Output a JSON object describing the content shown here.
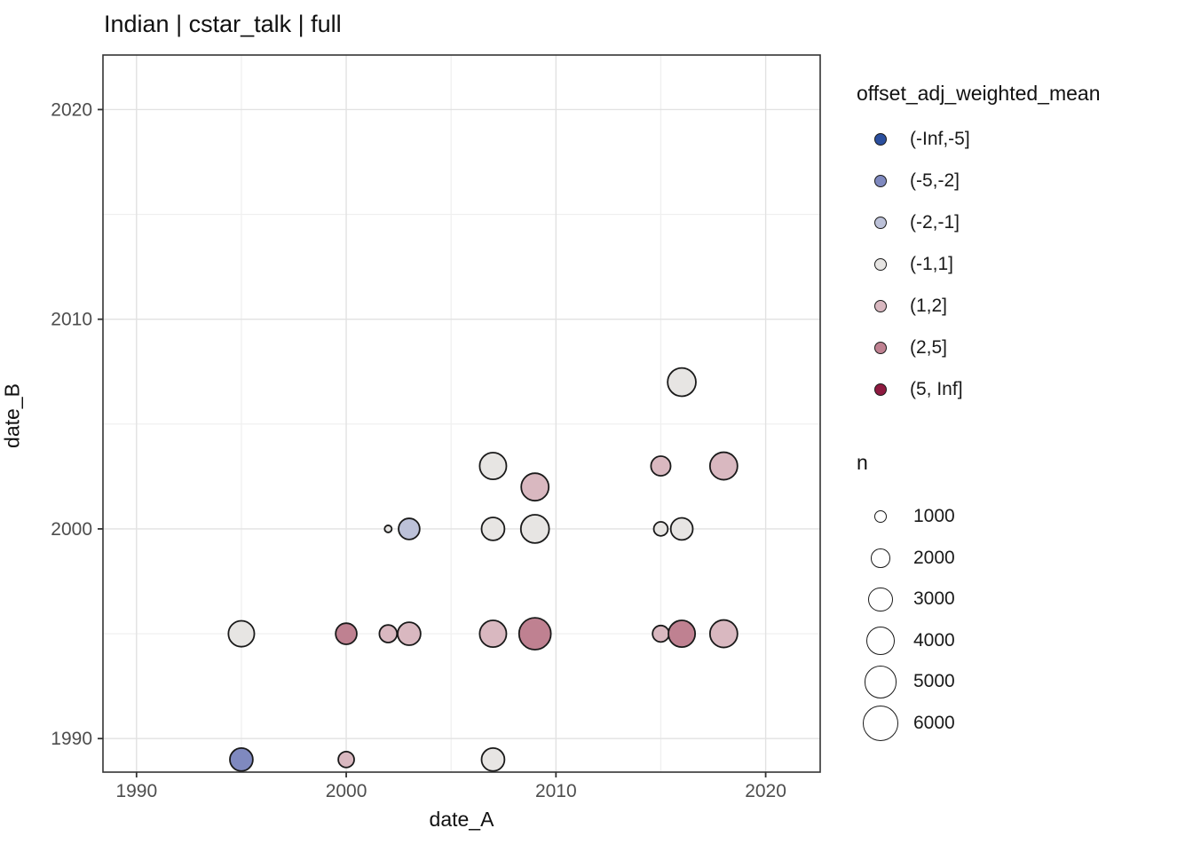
{
  "title": "Indian | cstar_talk | full",
  "chart_data": {
    "type": "scatter",
    "title": "Indian | cstar_talk | full",
    "xlabel": "date_A",
    "ylabel": "date_B",
    "xlim": [
      1988.4,
      2022.6
    ],
    "ylim": [
      1988.4,
      2022.6
    ],
    "x_ticks": [
      1990,
      2000,
      2010,
      2020
    ],
    "y_ticks": [
      1990,
      2000,
      2010,
      2020
    ],
    "x_minor_ticks": [
      1995,
      2005,
      2015
    ],
    "y_minor_ticks": [
      1995,
      2005,
      2015
    ],
    "grid": true,
    "legend_position": "right",
    "color_legend": {
      "title": "offset_adj_weighted_mean",
      "bins": [
        {
          "label": "(-Inf,-5]",
          "color": "#2b4f9e"
        },
        {
          "label": "(-5,-2]",
          "color": "#7f89bf"
        },
        {
          "label": "(-2,-1]",
          "color": "#bcc1d8"
        },
        {
          "label": "(-1,1]",
          "color": "#e7e5e3"
        },
        {
          "label": "(1,2]",
          "color": "#d9b8c0"
        },
        {
          "label": "(2,5]",
          "color": "#bf8191"
        },
        {
          "label": "(5, Inf]",
          "color": "#8e1a40"
        }
      ]
    },
    "size_legend": {
      "title": "n",
      "entries": [
        1000,
        2000,
        3000,
        4000,
        5000,
        6000
      ]
    },
    "points": [
      {
        "date_A": 1995,
        "date_B": 1989,
        "bin": "(-5,-2]",
        "n": 3300
      },
      {
        "date_A": 2000,
        "date_B": 1989,
        "bin": "(1,2]",
        "n": 1900
      },
      {
        "date_A": 2007,
        "date_B": 1989,
        "bin": "(-1,1]",
        "n": 3300
      },
      {
        "date_A": 1995,
        "date_B": 1995,
        "bin": "(-1,1]",
        "n": 4000
      },
      {
        "date_A": 2000,
        "date_B": 1995,
        "bin": "(2,5]",
        "n": 2900
      },
      {
        "date_A": 2002,
        "date_B": 1995,
        "bin": "(1,2]",
        "n": 2200
      },
      {
        "date_A": 2003,
        "date_B": 1995,
        "bin": "(1,2]",
        "n": 3300
      },
      {
        "date_A": 2007,
        "date_B": 1995,
        "bin": "(1,2]",
        "n": 4200
      },
      {
        "date_A": 2009,
        "date_B": 1995,
        "bin": "(2,5]",
        "n": 5600
      },
      {
        "date_A": 2015,
        "date_B": 1995,
        "bin": "(1,2]",
        "n": 2000
      },
      {
        "date_A": 2016,
        "date_B": 1995,
        "bin": "(2,5]",
        "n": 4200
      },
      {
        "date_A": 2018,
        "date_B": 1995,
        "bin": "(1,2]",
        "n": 4400
      },
      {
        "date_A": 2002,
        "date_B": 2000,
        "bin": "(-1,1]",
        "n": 700
      },
      {
        "date_A": 2003,
        "date_B": 2000,
        "bin": "(-2,-1]",
        "n": 2900
      },
      {
        "date_A": 2007,
        "date_B": 2000,
        "bin": "(-1,1]",
        "n": 3300
      },
      {
        "date_A": 2009,
        "date_B": 2000,
        "bin": "(-1,1]",
        "n": 4600
      },
      {
        "date_A": 2015,
        "date_B": 2000,
        "bin": "(-1,1]",
        "n": 1600
      },
      {
        "date_A": 2016,
        "date_B": 2000,
        "bin": "(-1,1]",
        "n": 3100
      },
      {
        "date_A": 2009,
        "date_B": 2002,
        "bin": "(1,2]",
        "n": 4400
      },
      {
        "date_A": 2007,
        "date_B": 2003,
        "bin": "(-1,1]",
        "n": 4200
      },
      {
        "date_A": 2015,
        "date_B": 2003,
        "bin": "(1,2]",
        "n": 2600
      },
      {
        "date_A": 2018,
        "date_B": 2003,
        "bin": "(1,2]",
        "n": 4400
      },
      {
        "date_A": 2016,
        "date_B": 2007,
        "bin": "(-1,1]",
        "n": 4600
      }
    ]
  }
}
